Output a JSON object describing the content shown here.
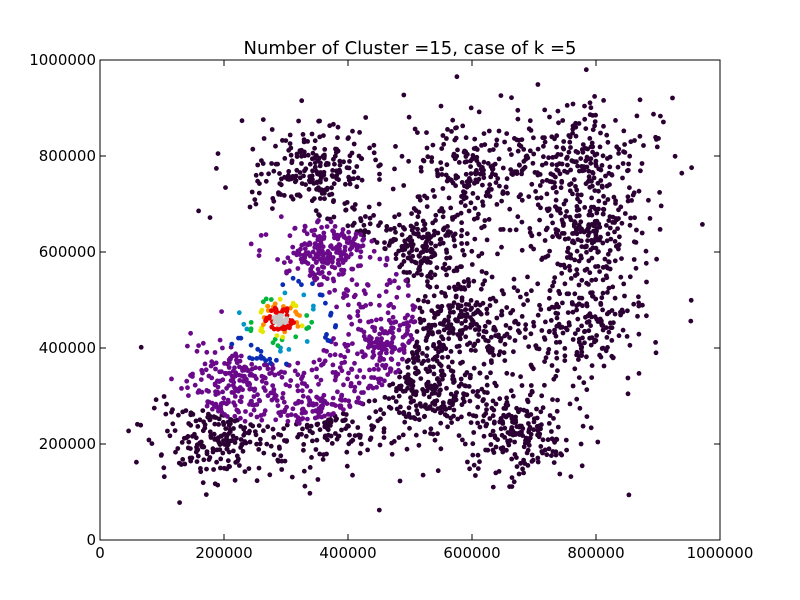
{
  "chart_data": {
    "type": "scatter",
    "title": "Number of Cluster =15, case of k =5",
    "xlabel": "",
    "ylabel": "",
    "xlim": [
      0,
      1000000
    ],
    "ylim": [
      0,
      1000000
    ],
    "x_ticks": [
      0,
      200000,
      400000,
      600000,
      800000,
      1000000
    ],
    "y_ticks": [
      0,
      200000,
      400000,
      600000,
      800000,
      1000000
    ],
    "x_tick_labels": [
      "0",
      "200000",
      "400000",
      "600000",
      "800000",
      "1000000"
    ],
    "y_tick_labels": [
      "0",
      "200000",
      "400000",
      "600000",
      "800000",
      "1000000"
    ],
    "grid": false,
    "legend": "none",
    "colormap": [
      "#2b0033",
      "#6a0a8a",
      "#0a2db4",
      "#0096c8",
      "#00b43c",
      "#e6e600",
      "#ff8c00",
      "#e60000",
      "#c8c8c8"
    ],
    "clusters": [
      {
        "center": [
          195000,
          215000
        ],
        "spread": 45000
      },
      {
        "center": [
          230000,
          340000
        ],
        "spread": 42000
      },
      {
        "center": [
          360000,
          255000
        ],
        "spread": 45000
      },
      {
        "center": [
          340000,
          765000
        ],
        "spread": 50000
      },
      {
        "center": [
          365000,
          595000
        ],
        "spread": 35000
      },
      {
        "center": [
          450000,
          400000
        ],
        "spread": 45000
      },
      {
        "center": [
          520000,
          610000
        ],
        "spread": 45000
      },
      {
        "center": [
          535000,
          305000
        ],
        "spread": 45000
      },
      {
        "center": [
          580000,
          450000
        ],
        "spread": 45000
      },
      {
        "center": [
          600000,
          770000
        ],
        "spread": 55000
      },
      {
        "center": [
          675000,
          230000
        ],
        "spread": 45000
      },
      {
        "center": [
          770000,
          790000
        ],
        "spread": 55000
      },
      {
        "center": [
          775000,
          455000
        ],
        "spread": 55000
      },
      {
        "center": [
          780000,
          640000
        ],
        "spread": 50000
      },
      {
        "center": [
          290000,
          460000
        ],
        "spread": 18000
      }
    ],
    "density_hotspot": [
      290000,
      460000
    ]
  }
}
